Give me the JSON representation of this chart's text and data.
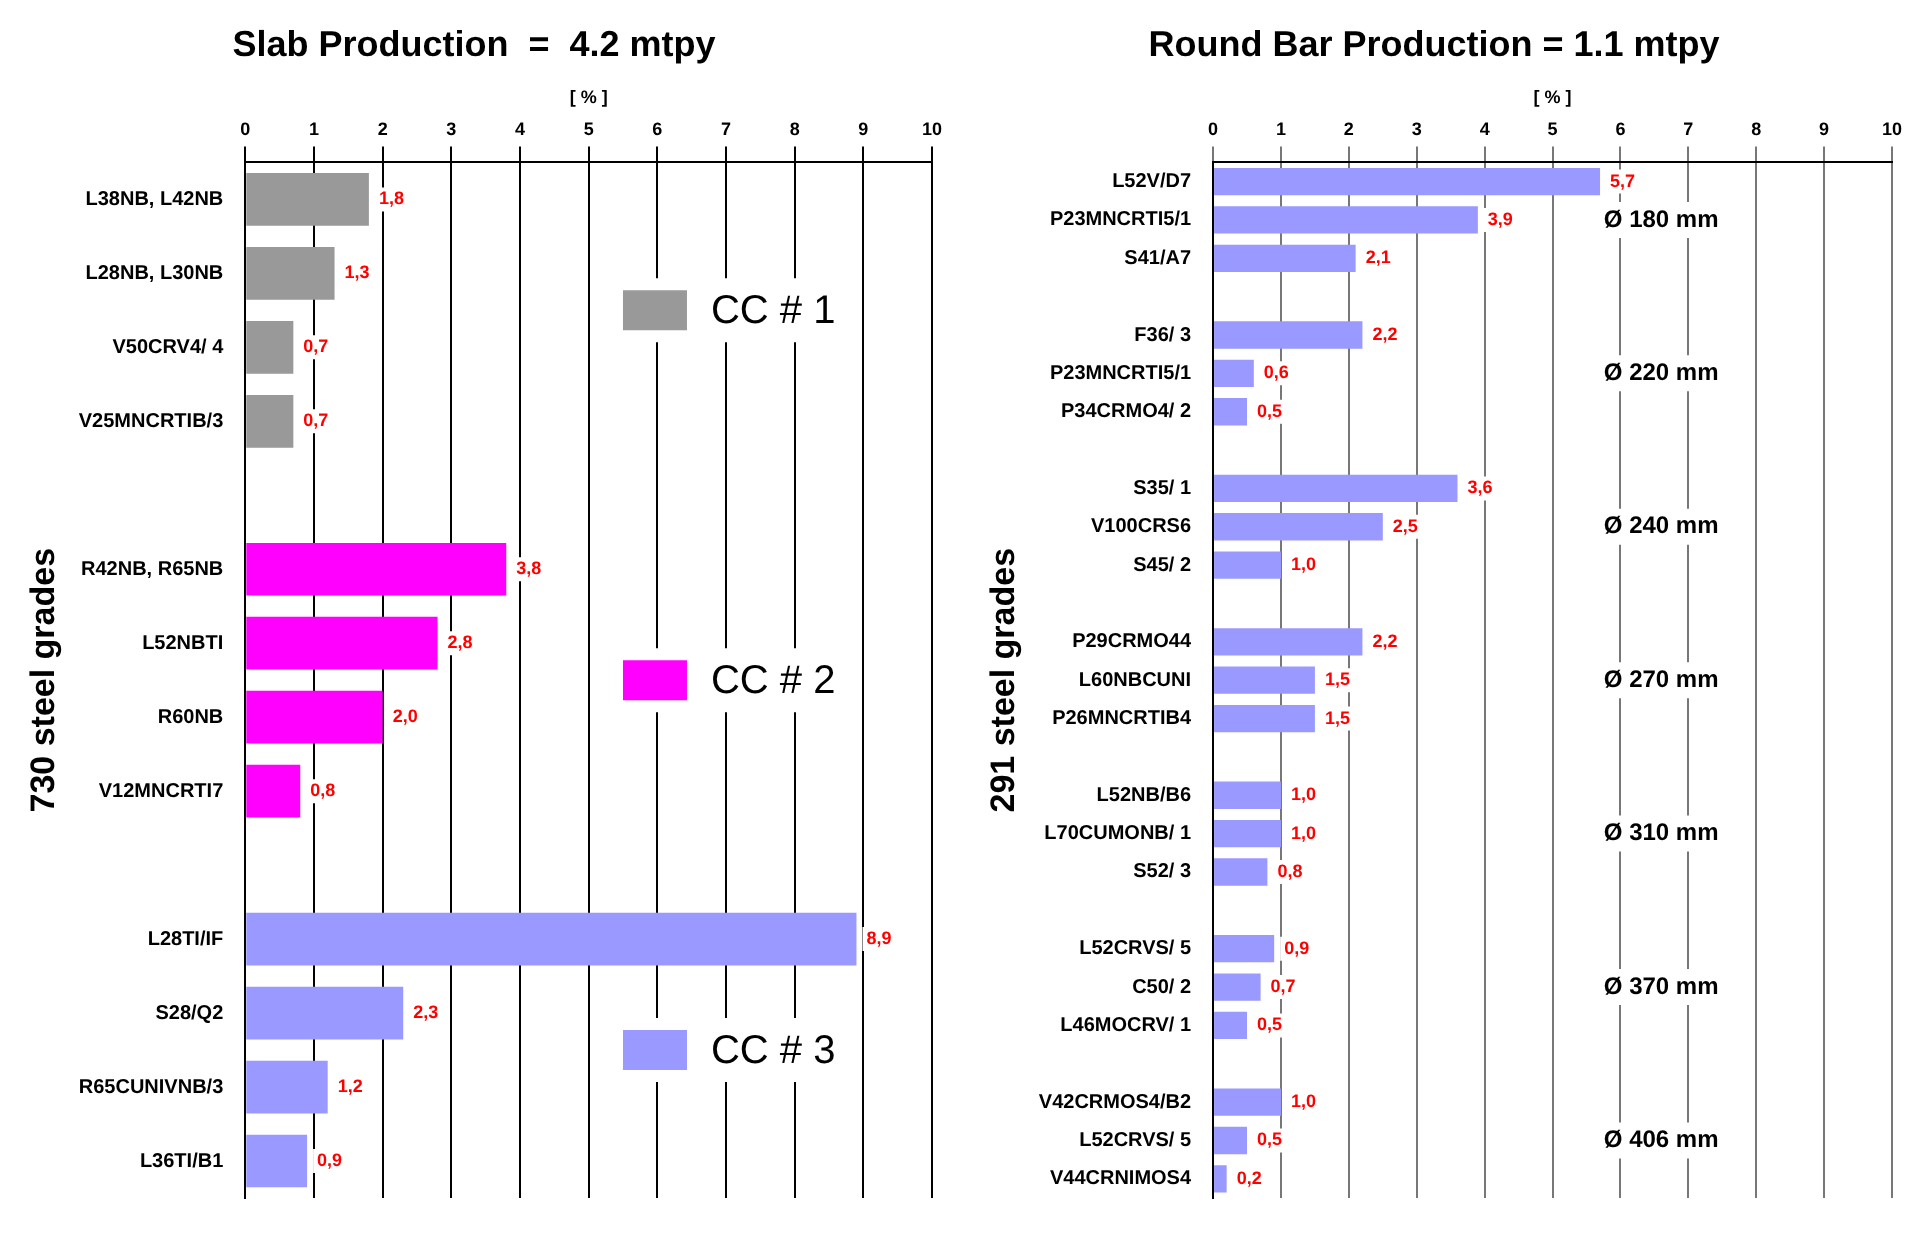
{
  "chart_data": [
    {
      "type": "bar",
      "orientation": "horizontal",
      "title": "Slab Production  =  4.2 mtpy",
      "xlabel": "[ % ]",
      "ylabel": "730 steel grades",
      "categories": [
        "L38NB, L42NB",
        "L28NB, L30NB",
        "V50CRV4/ 4",
        "V25MNCRTIB/3",
        null,
        "R42NB, R65NB",
        "L52NBTI",
        "R60NB",
        "V12MNCRTI7",
        null,
        "L28TI/IF",
        "S28/Q2",
        "R65CUNIVNB/3",
        "L36TI/B1"
      ],
      "series": [
        {
          "name": "CC # 1",
          "color": "#999999",
          "values": [
            1.8,
            1.3,
            0.7,
            0.7,
            null,
            null,
            null,
            null,
            null,
            null,
            null,
            null,
            null,
            null
          ],
          "value_labels": [
            "1,8",
            "1,3",
            "0,7",
            "0,7",
            null,
            null,
            null,
            null,
            null,
            null,
            null,
            null,
            null,
            null
          ]
        },
        {
          "name": "CC # 2",
          "color": "#ff00ff",
          "values": [
            null,
            null,
            null,
            null,
            null,
            3.8,
            2.8,
            2.0,
            0.8,
            null,
            null,
            null,
            null,
            null
          ],
          "value_labels": [
            null,
            null,
            null,
            null,
            null,
            "3,8",
            "2,8",
            "2,0",
            "0,8",
            null,
            null,
            null,
            null,
            null
          ]
        },
        {
          "name": "CC # 3",
          "color": "#9999ff",
          "values": [
            null,
            null,
            null,
            null,
            null,
            null,
            null,
            null,
            null,
            null,
            8.9,
            2.3,
            1.2,
            0.9
          ],
          "value_labels": [
            null,
            null,
            null,
            null,
            null,
            null,
            null,
            null,
            null,
            null,
            "8,9",
            "2,3",
            "1,2",
            "0,9"
          ]
        }
      ],
      "xlim": [
        0,
        10
      ],
      "xticks": [
        0,
        1,
        2,
        3,
        4,
        5,
        6,
        7,
        8,
        9,
        10
      ],
      "grid": "x",
      "legend": "right"
    },
    {
      "type": "bar",
      "orientation": "horizontal",
      "title": "Round Bar Production = 1.1 mtpy",
      "xlabel": "[ % ]",
      "ylabel": "291 steel grades",
      "categories": [
        "L52V/D7",
        "P23MNCRTI5/1",
        "S41/A7",
        null,
        "F36/ 3",
        "P23MNCRTI5/1",
        "P34CRMO4/ 2",
        null,
        "S35/ 1",
        "V100CRS6",
        "S45/ 2",
        null,
        "P29CRMO44",
        "L60NBCUNI",
        "P26MNCRTIB4",
        null,
        "L52NB/B6",
        "L70CUMONB/ 1",
        "S52/ 3",
        null,
        "L52CRVS/ 5",
        "C50/ 2",
        "L46MOCRV/ 1",
        null,
        "V42CRMOS4/B2",
        "L52CRVS/ 5",
        "V44CRNIMOS4"
      ],
      "series": [
        {
          "color": "#9999ff",
          "values": [
            5.7,
            3.9,
            2.1,
            null,
            2.2,
            0.6,
            0.5,
            null,
            3.6,
            2.5,
            1.0,
            null,
            2.2,
            1.5,
            1.5,
            null,
            1.0,
            1.0,
            0.8,
            null,
            0.9,
            0.7,
            0.5,
            null,
            1.0,
            0.5,
            0.2
          ],
          "value_labels": [
            "5,7",
            "3,9",
            "2,1",
            null,
            "2,2",
            "0,6",
            "0,5",
            null,
            "3,6",
            "2,5",
            "1,0",
            null,
            "2,2",
            "1,5",
            "1,5",
            null,
            "1,0",
            "1,0",
            "0,8",
            null,
            "0,9",
            "0,7",
            "0,5",
            null,
            "1,0",
            "0,5",
            "0,2"
          ]
        }
      ],
      "annotations": [
        "Ø 180 mm",
        "Ø 220 mm",
        "Ø 240 mm",
        "Ø 270 mm",
        "Ø 310 mm",
        "Ø 370 mm",
        "Ø 406 mm"
      ],
      "xlim": [
        0,
        10
      ],
      "xticks": [
        0,
        1,
        2,
        3,
        4,
        5,
        6,
        7,
        8,
        9,
        10
      ],
      "grid": "x"
    }
  ]
}
